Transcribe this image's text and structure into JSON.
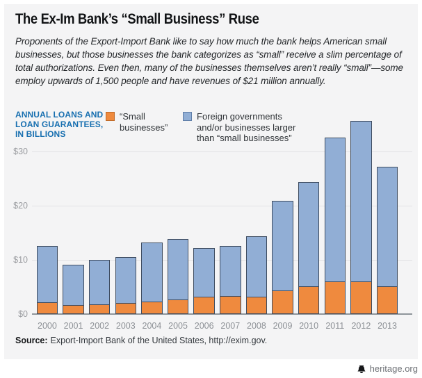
{
  "header": {
    "title": "The Ex-Im Bank’s “Small Business” Ruse",
    "subtitle": "Proponents of the Export-Import Bank like to say how much the bank helps American small businesses, but those businesses the bank categorizes as “small” receive a slim percentage of total authorizations. Even then, many of the businesses themselves aren’t really “small”—some employ upwards of 1,500 people and have revenues of $21 million annually."
  },
  "chart_data": {
    "type": "bar",
    "stacked": true,
    "axis_caption": "ANNUAL LOANS AND\nLOAN GUARANTEES,\nIN BILLIONS",
    "categories": [
      "2000",
      "2001",
      "2002",
      "2003",
      "2004",
      "2005",
      "2006",
      "2007",
      "2008",
      "2009",
      "2010",
      "2011",
      "2012",
      "2013"
    ],
    "series": [
      {
        "name": "“Small businesses”",
        "display_label": "“Small\nbusinesses”",
        "color": "#ef8a3e",
        "values": [
          2.2,
          1.7,
          1.8,
          2.0,
          2.3,
          2.7,
          3.2,
          3.4,
          3.2,
          4.4,
          5.1,
          6.0,
          6.1,
          5.2
        ]
      },
      {
        "name": "Foreign governments and/or businesses larger than “small businesses”",
        "display_label": "Foreign governments\nand/or businesses larger\nthan “small businesses”",
        "color": "#91aed5",
        "values": [
          10.4,
          7.5,
          8.3,
          8.5,
          11.0,
          11.2,
          9.0,
          9.2,
          11.2,
          16.6,
          19.4,
          26.7,
          29.7,
          22.1
        ]
      }
    ],
    "totals": [
      12.6,
      9.2,
      10.1,
      10.5,
      13.3,
      13.9,
      12.2,
      12.6,
      14.4,
      21.0,
      24.5,
      32.7,
      35.8,
      27.3
    ],
    "y_axis": {
      "ticks": [
        {
          "label": "$0",
          "value": 0
        },
        {
          "label": "$10",
          "value": 10
        },
        {
          "label": "$20",
          "value": 20
        },
        {
          "label": "$30",
          "value": 30
        }
      ],
      "unit": "billions of dollars"
    },
    "ylim": [
      0,
      37
    ],
    "grid": true,
    "legend_position": "top"
  },
  "source": {
    "label": "Source:",
    "text": "Export-Import Bank of the United States, http://exim.gov."
  },
  "footer": {
    "brand": "heritage.org"
  },
  "colors": {
    "panel_background": "#f4f4f5",
    "page_background": "#ffffff",
    "accent_blue": "#176fb0",
    "bar_small_business": "#ef8a3e",
    "bar_large_business": "#91aed5",
    "bar_outline": "#3e4c60",
    "gridline": "#e2e2e4",
    "axis_line": "#8f959b",
    "tick_text": "#9b9da1"
  }
}
